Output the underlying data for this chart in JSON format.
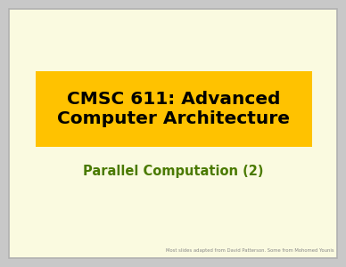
{
  "bg_outer": "#c8c8c8",
  "bg_inner": "#fafae0",
  "border_color": "#b0b0b0",
  "title_box_color": "#ffc200",
  "title_text": "CMSC 611: Advanced\nComputer Architecture",
  "title_color": "#000000",
  "subtitle_text": "Parallel Computation (2)",
  "subtitle_color": "#4a7a00",
  "footer_text": "Most slides adapted from David Patterson. Some from Mohomed Younis",
  "footer_color": "#888888",
  "title_fontsize": 14.5,
  "subtitle_fontsize": 10.5,
  "footer_fontsize": 3.8
}
